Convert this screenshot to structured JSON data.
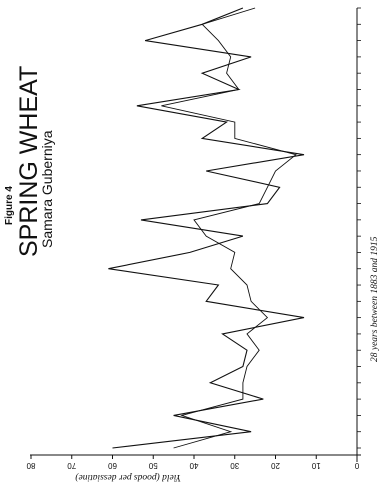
{
  "figure": {
    "label": "Figure 4",
    "title": "SPRING WHEAT",
    "subtitle": "Samara Guberniya"
  },
  "chart_data": {
    "type": "line",
    "title": "SPRING WHEAT",
    "subtitle": "Samara Guberniya",
    "xlabel": "28 years between 1883 and 1915",
    "ylabel": "Yield (poods per dessiatine)",
    "ylim": [
      0,
      80
    ],
    "yticks": [
      0,
      10,
      20,
      30,
      40,
      50,
      60,
      70,
      80
    ],
    "xlim": [
      1,
      28
    ],
    "grid": false,
    "legend": "none",
    "x": [
      1,
      2,
      3,
      4,
      5,
      6,
      7,
      8,
      9,
      10,
      11,
      12,
      13,
      14,
      15,
      16,
      17,
      18,
      19,
      20,
      21,
      22,
      23,
      24,
      25,
      26,
      27,
      28
    ],
    "series": [
      {
        "values": [
          60,
          26,
          45,
          23,
          36,
          28,
          27,
          33,
          13,
          37,
          34,
          61,
          41,
          28,
          53,
          22,
          19,
          37,
          13,
          38,
          32,
          54,
          29,
          38,
          26,
          52,
          38,
          28
        ]
      },
      {
        "values": [
          45,
          31,
          43,
          28,
          28,
          27,
          24,
          27,
          22,
          26,
          27,
          31,
          30,
          37,
          40,
          24,
          22,
          20,
          15,
          30,
          30,
          48,
          29,
          32,
          31,
          34,
          38,
          25
        ]
      }
    ]
  }
}
